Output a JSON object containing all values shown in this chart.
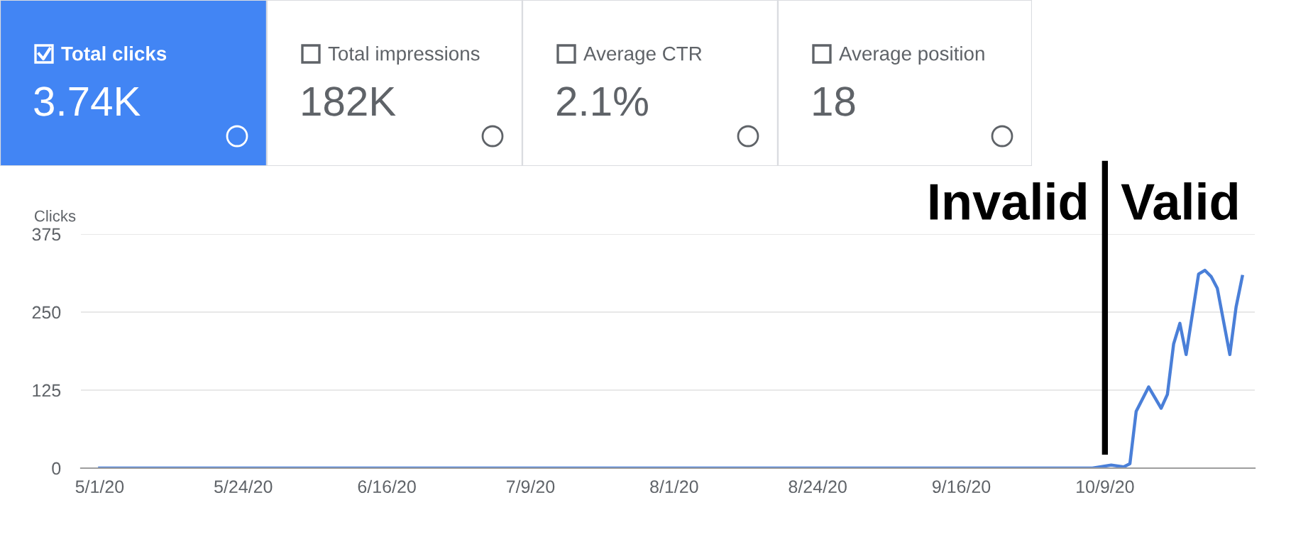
{
  "chart_data": [
    {
      "type": "other",
      "annotations": [
        "Total clicks",
        "3.74K",
        "Total impressions",
        "182K",
        "Average CTR",
        "2.1%",
        "Average position",
        "18"
      ]
    },
    {
      "type": "line",
      "ylabel": "Clicks",
      "x": [
        "2020-05-01",
        "2020-10-07",
        "2020-10-10",
        "2020-10-12",
        "2020-10-13",
        "2020-10-14",
        "2020-10-16",
        "2020-10-18",
        "2020-10-19",
        "2020-10-20",
        "2020-10-21",
        "2020-10-22",
        "2020-10-24",
        "2020-10-25",
        "2020-10-26",
        "2020-10-27",
        "2020-10-29",
        "2020-10-30",
        "2020-10-31"
      ],
      "series": [
        {
          "color": "#4a7fd8",
          "values": [
            0,
            0,
            5,
            2,
            7,
            91,
            130,
            96,
            118,
            199,
            232,
            182,
            311,
            317,
            307,
            288,
            182,
            258,
            307
          ]
        }
      ],
      "xlim": [
        "2020-04-28",
        "2020-11-02"
      ],
      "xticks": [
        {
          "value": "2020-05-01",
          "label": "5/1/20"
        },
        {
          "value": "2020-05-24",
          "label": "5/24/20"
        },
        {
          "value": "2020-06-16",
          "label": "6/16/20"
        },
        {
          "value": "2020-07-09",
          "label": "7/9/20"
        },
        {
          "value": "2020-08-01",
          "label": "8/1/20"
        },
        {
          "value": "2020-08-24",
          "label": "8/24/20"
        },
        {
          "value": "2020-09-16",
          "label": "9/16/20"
        },
        {
          "value": "2020-10-09",
          "label": "10/9/20"
        }
      ],
      "ylim": [
        0,
        375
      ],
      "yticks": [
        0,
        125,
        250,
        375
      ],
      "grid": "y",
      "marker": "none",
      "line_style": "solid",
      "legend": false,
      "ref_lines": [
        {
          "axis": "x",
          "value": "2020-10-09",
          "color": "#000000",
          "line_style": "solid"
        }
      ],
      "annotations": [
        "Invalid",
        "Valid"
      ]
    }
  ]
}
